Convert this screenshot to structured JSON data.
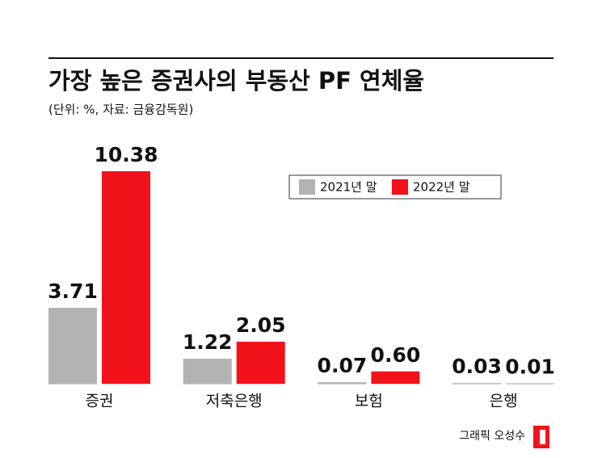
{
  "chart_data": {
    "type": "bar",
    "title": "가장 높은 증권사의 부동산 PF 연체율",
    "subtitle": "(단위: %, 자료: 금융감독원)",
    "categories": [
      "증권",
      "저축은행",
      "보험",
      "은행"
    ],
    "series": [
      {
        "name": "2021년 말",
        "color": "#b3b3b3",
        "values": [
          3.71,
          1.22,
          0.07,
          0.03
        ],
        "value_labels": [
          "3.71",
          "1.22",
          "0.07",
          "0.03"
        ],
        "label_color": "#111111"
      },
      {
        "name": "2022년 말",
        "color": "#f2121b",
        "values": [
          10.38,
          2.05,
          0.6,
          0.01
        ],
        "value_labels": [
          "10.38",
          "2.05",
          "0.60",
          "0.01"
        ],
        "label_color": "#f2121b"
      }
    ],
    "credit": "그래픽 오성수"
  }
}
